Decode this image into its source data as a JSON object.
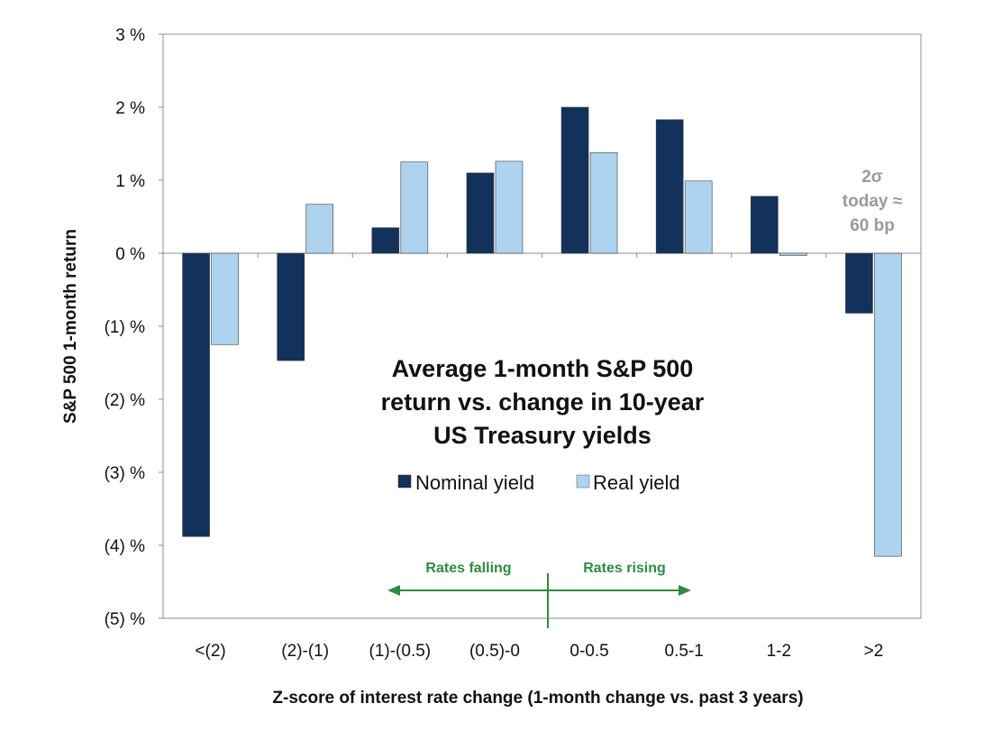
{
  "chart_data": {
    "type": "bar",
    "title_lines": [
      "Average 1-month S&P 500",
      "return vs. change in 10-year",
      "US Treasury yields"
    ],
    "xlabel": "Z-score of interest rate change (1-month change vs. past 3 years)",
    "ylabel": "S&P 500 1-month return",
    "categories": [
      "<(2)",
      "(2)-(1)",
      "(1)-(0.5)",
      "(0.5)-0",
      "0-0.5",
      "0.5-1",
      "1-2",
      ">2"
    ],
    "series": [
      {
        "name": "Nominal yield",
        "color": "#12325b",
        "values": [
          -3.88,
          -1.47,
          0.35,
          1.1,
          2.0,
          1.83,
          0.78,
          -0.82
        ]
      },
      {
        "name": "Real yield",
        "color": "#aed3ee",
        "values": [
          -1.25,
          0.67,
          1.25,
          1.26,
          1.38,
          0.99,
          -0.03,
          -4.15
        ]
      }
    ],
    "ylim": [
      -5,
      3
    ],
    "yticks": [
      3,
      2,
      1,
      0,
      -1,
      -2,
      -3,
      -4,
      -5
    ],
    "ytick_labels": [
      "3 %",
      "2 %",
      "1 %",
      "0 %",
      "(1) %",
      "(2) %",
      "(3) %",
      "(4) %",
      "(5) %"
    ],
    "grid": false,
    "legend_position": "center",
    "annotations": {
      "rates_falling": "Rates falling",
      "rates_rising": "Rates rising",
      "sigma_lines": [
        "2σ",
        "today ≈",
        "60 bp"
      ]
    }
  }
}
